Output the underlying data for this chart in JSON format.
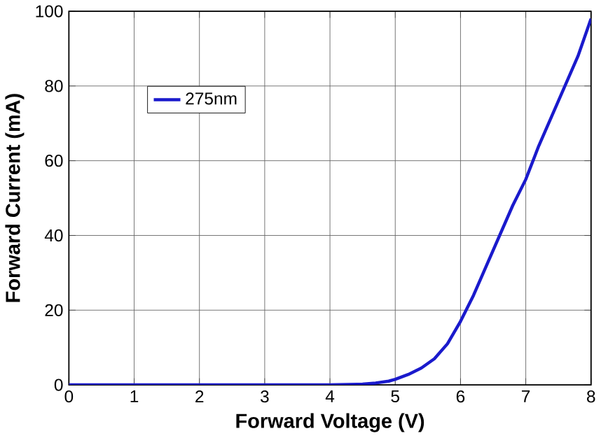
{
  "chart_data": {
    "type": "line",
    "xlabel": "Forward Voltage (V)",
    "ylabel": "Forward Current (mA)",
    "x": [
      0,
      1,
      2,
      3,
      4,
      4.5,
      4.7,
      4.9,
      5.0,
      5.2,
      5.4,
      5.6,
      5.8,
      6.0,
      6.2,
      6.4,
      6.6,
      6.8,
      7.0,
      7.2,
      7.4,
      7.6,
      7.8,
      8.0
    ],
    "series": [
      {
        "name": "275nm",
        "color": "#1a1acc",
        "values": [
          0,
          0,
          0,
          0,
          0,
          0.2,
          0.5,
          1,
          1.5,
          2.8,
          4.5,
          7,
          11,
          17,
          24,
          32,
          40,
          48,
          55,
          64,
          72,
          80,
          88,
          98
        ]
      }
    ],
    "xlim": [
      0,
      8
    ],
    "ylim": [
      0,
      100
    ],
    "xticks": [
      0,
      1,
      2,
      3,
      4,
      5,
      6,
      7,
      8
    ],
    "yticks": [
      0,
      20,
      40,
      60,
      80,
      100
    ],
    "grid": true,
    "legend": "top left",
    "marker": "none",
    "line_style": "solid"
  }
}
